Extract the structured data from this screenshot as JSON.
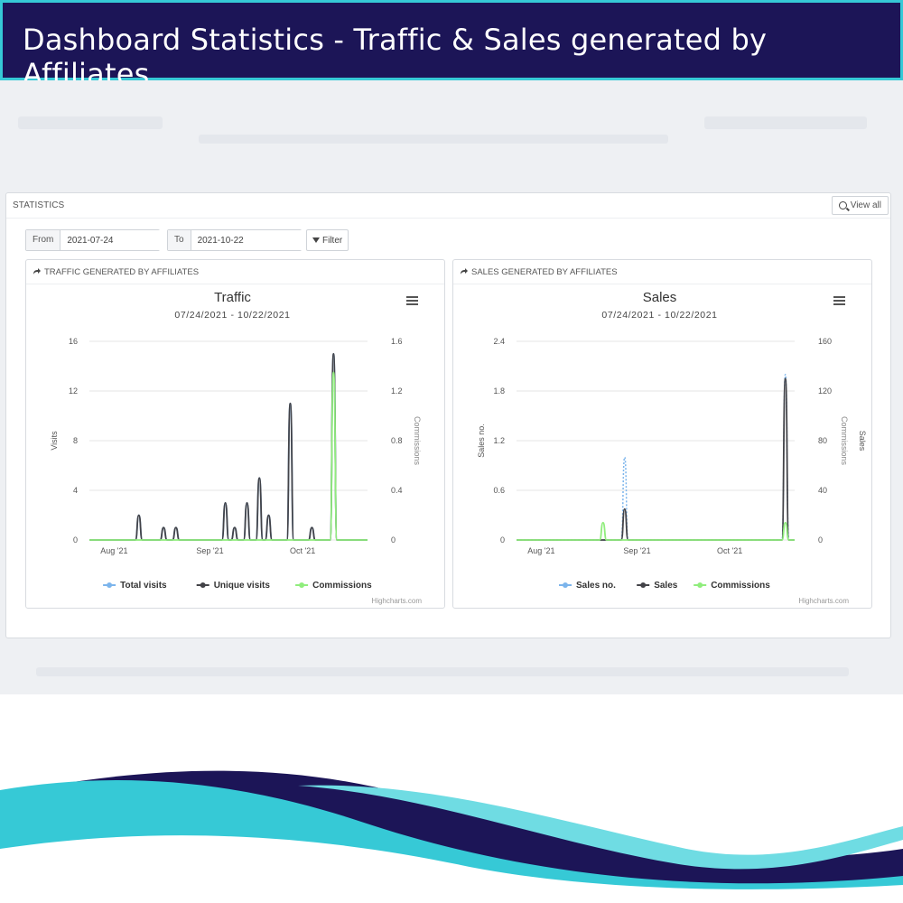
{
  "banner": {
    "title": "Dashboard Statistics - Traffic & Sales generated by Affiliates"
  },
  "panel": {
    "title": "STATISTICS",
    "view_all": "View all",
    "from_label": "From",
    "from_value": "2021-07-24",
    "to_label": "To",
    "to_value": "2021-10-22",
    "filter_label": "Filter"
  },
  "icons": {
    "search": "search-icon",
    "filter": "filter-icon",
    "share": "share-icon",
    "menu": "hamburger-menu-icon"
  },
  "colors": {
    "banner_bg": "#1c1557",
    "banner_border": "#36c9d6",
    "series_blue": "#7cb5ec",
    "series_dark": "#434348",
    "series_green": "#90ed7d",
    "wave_navy": "#1c1557",
    "wave_cyan": "#36c9d6"
  },
  "traffic": {
    "card_title": "TRAFFIC GENERATED BY AFFILIATES",
    "credit": "Highcharts.com"
  },
  "sales": {
    "card_title": "SALES GENERATED BY AFFILIATES",
    "credit": "Highcharts.com"
  },
  "chart_data": [
    {
      "type": "line",
      "title": "Traffic",
      "subtitle": "07/24/2021 - 10/22/2021",
      "x_start": "2021-07-24",
      "x_end": "2021-10-22",
      "x_ticks": [
        "2021-08-01",
        "2021-09-01",
        "2021-10-01"
      ],
      "x_tick_labels": [
        "Aug '21",
        "Sep '21",
        "Oct '21"
      ],
      "ylabel": "Visits",
      "ylim": [
        0,
        16
      ],
      "y_ticks": [
        0,
        4,
        8,
        12,
        16
      ],
      "y_tick_labels": [
        "0",
        "4",
        "8",
        "12",
        "16"
      ],
      "y2label": "Commissions",
      "y2lim": [
        0,
        1.6
      ],
      "y2_ticks": [
        0,
        0.4,
        0.8,
        1.2,
        1.6
      ],
      "y2_tick_labels": [
        "0",
        "0.4",
        "0.8",
        "1.2",
        "1.6"
      ],
      "grid": true,
      "legend": "bottom",
      "series": [
        {
          "name": "Total visits",
          "color": "#7cb5ec",
          "axis": "left",
          "points": [
            [
              "2021-08-09",
              2
            ],
            [
              "2021-08-17",
              1
            ],
            [
              "2021-08-21",
              1
            ],
            [
              "2021-08-31",
              0
            ],
            [
              "2021-09-02",
              0
            ],
            [
              "2021-09-06",
              3
            ],
            [
              "2021-09-09",
              1
            ],
            [
              "2021-09-13",
              3
            ],
            [
              "2021-09-17",
              5
            ],
            [
              "2021-09-20",
              2
            ],
            [
              "2021-09-27",
              11
            ],
            [
              "2021-10-04",
              1
            ],
            [
              "2021-10-11",
              15
            ]
          ]
        },
        {
          "name": "Unique visits",
          "color": "#434348",
          "axis": "left",
          "points": [
            [
              "2021-08-09",
              2
            ],
            [
              "2021-08-17",
              1
            ],
            [
              "2021-08-21",
              1
            ],
            [
              "2021-09-06",
              3
            ],
            [
              "2021-09-09",
              1
            ],
            [
              "2021-09-13",
              3
            ],
            [
              "2021-09-17",
              5
            ],
            [
              "2021-09-20",
              2
            ],
            [
              "2021-09-27",
              11
            ],
            [
              "2021-10-04",
              1
            ],
            [
              "2021-10-11",
              15
            ]
          ]
        },
        {
          "name": "Commissions",
          "color": "#90ed7d",
          "axis": "right",
          "points": [
            [
              "2021-10-11",
              1.35
            ]
          ]
        }
      ]
    },
    {
      "type": "line",
      "title": "Sales",
      "subtitle": "07/24/2021 - 10/22/2021",
      "x_start": "2021-07-24",
      "x_end": "2021-10-22",
      "x_ticks": [
        "2021-08-01",
        "2021-09-01",
        "2021-10-01"
      ],
      "x_tick_labels": [
        "Aug '21",
        "Sep '21",
        "Oct '21"
      ],
      "ylabel": "Sales no.",
      "ylim": [
        0,
        2.4
      ],
      "y_ticks": [
        0,
        0.6,
        1.2,
        1.8,
        2.4
      ],
      "y_tick_labels": [
        "0",
        "0.6",
        "1.2",
        "1.8",
        "2.4"
      ],
      "y2label": "Commissions",
      "y3label": "Sales",
      "y2lim": [
        0,
        160
      ],
      "y2_ticks": [
        0,
        40,
        80,
        120,
        160
      ],
      "y2_tick_labels": [
        "0",
        "40",
        "80",
        "120",
        "160"
      ],
      "grid": true,
      "legend": "bottom",
      "series": [
        {
          "name": "Sales no.",
          "color": "#7cb5ec",
          "axis": "left",
          "dashed": true,
          "points": [
            [
              "2021-08-28",
              1
            ],
            [
              "2021-10-19",
              2
            ]
          ]
        },
        {
          "name": "Sales",
          "color": "#434348",
          "axis": "right",
          "points": [
            [
              "2021-08-28",
              25
            ],
            [
              "2021-10-19",
              130
            ]
          ]
        },
        {
          "name": "Commissions",
          "color": "#90ed7d",
          "axis": "right",
          "points": [
            [
              "2021-08-21",
              14
            ],
            [
              "2021-10-19",
              14
            ]
          ]
        }
      ]
    }
  ]
}
